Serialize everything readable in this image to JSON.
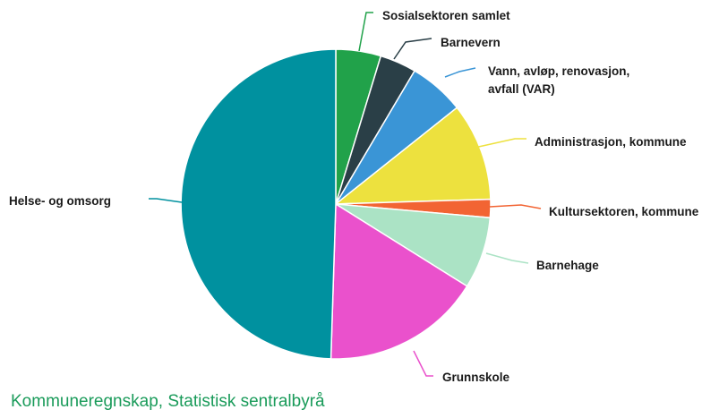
{
  "chart_data": {
    "type": "pie",
    "title": "",
    "slices": [
      {
        "label": "Sosialsektoren samlet",
        "value": 4.7,
        "color": "#21a24a"
      },
      {
        "label": "Barnevern",
        "value": 3.8,
        "color": "#2a3f47"
      },
      {
        "label": "Vann, avløp, renovasjon, avfall (VAR)",
        "value": 5.8,
        "color": "#3a95d6"
      },
      {
        "label": "Administrasjon, kommune",
        "value": 10.2,
        "color": "#ede13e"
      },
      {
        "label": "Kultursektoren, kommune",
        "value": 1.9,
        "color": "#f26433"
      },
      {
        "label": "Barnehage",
        "value": 7.5,
        "color": "#abe3c5"
      },
      {
        "label": "Grunnskole",
        "value": 16.6,
        "color": "#ea51cc"
      },
      {
        "label": "Helse- og omsorg",
        "value": 49.5,
        "color": "#00919f"
      }
    ],
    "label_lines": [
      "Sosialsektoren samlet",
      "Barnevern",
      "Vann, avløp, renovasjon,",
      "avfall (VAR)",
      "Administrasjon, kommune",
      "Kultursektoren, kommune",
      "Barnehage",
      "Grunnskole",
      "Helse- og omsorg"
    ]
  },
  "source": "Kommuneregnskap, Statistisk sentralbyrå"
}
